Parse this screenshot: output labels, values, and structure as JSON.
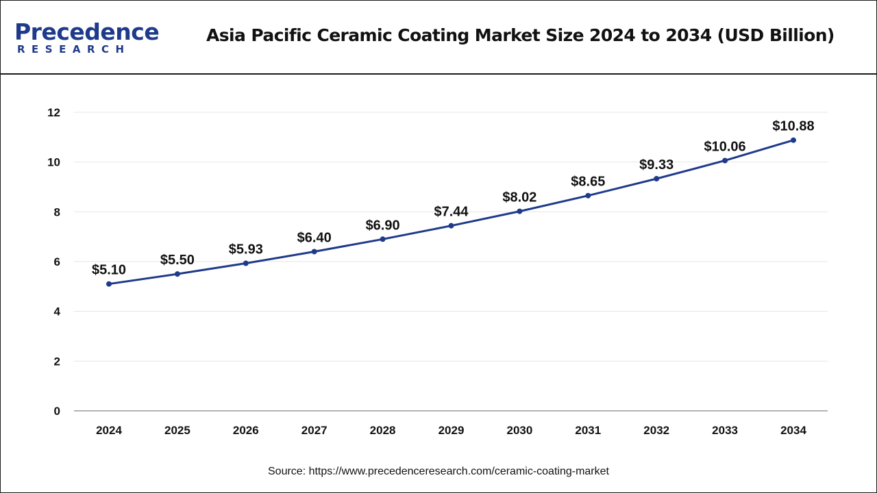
{
  "brand": {
    "name": "Precedence",
    "sub": "RESEARCH",
    "color": "#1e3a8a"
  },
  "source": "Source: https://www.precedenceresearch.com/ceramic-coating-market",
  "chart_data": {
    "type": "line",
    "title": "Asia Pacific Ceramic Coating Market Size 2024 to 2034 (USD Billion)",
    "xlabel": "",
    "ylabel": "",
    "categories": [
      "2024",
      "2025",
      "2026",
      "2027",
      "2028",
      "2029",
      "2030",
      "2031",
      "2032",
      "2033",
      "2034"
    ],
    "series": [
      {
        "values": [
          5.1,
          5.5,
          5.93,
          6.4,
          6.9,
          7.44,
          8.02,
          8.65,
          9.33,
          10.06,
          10.88
        ],
        "labels": [
          "$5.10",
          "$5.50",
          "$5.93",
          "$6.40",
          "$6.90",
          "$7.44",
          "$8.02",
          "$8.65",
          "$9.33",
          "$10.06",
          "$10.88"
        ],
        "color": "#1e3a8a"
      }
    ],
    "yticks": [
      "0",
      "2",
      "4",
      "6",
      "8",
      "10",
      "12"
    ],
    "ylim": [
      0,
      12
    ],
    "grid": true,
    "legend": "none"
  }
}
